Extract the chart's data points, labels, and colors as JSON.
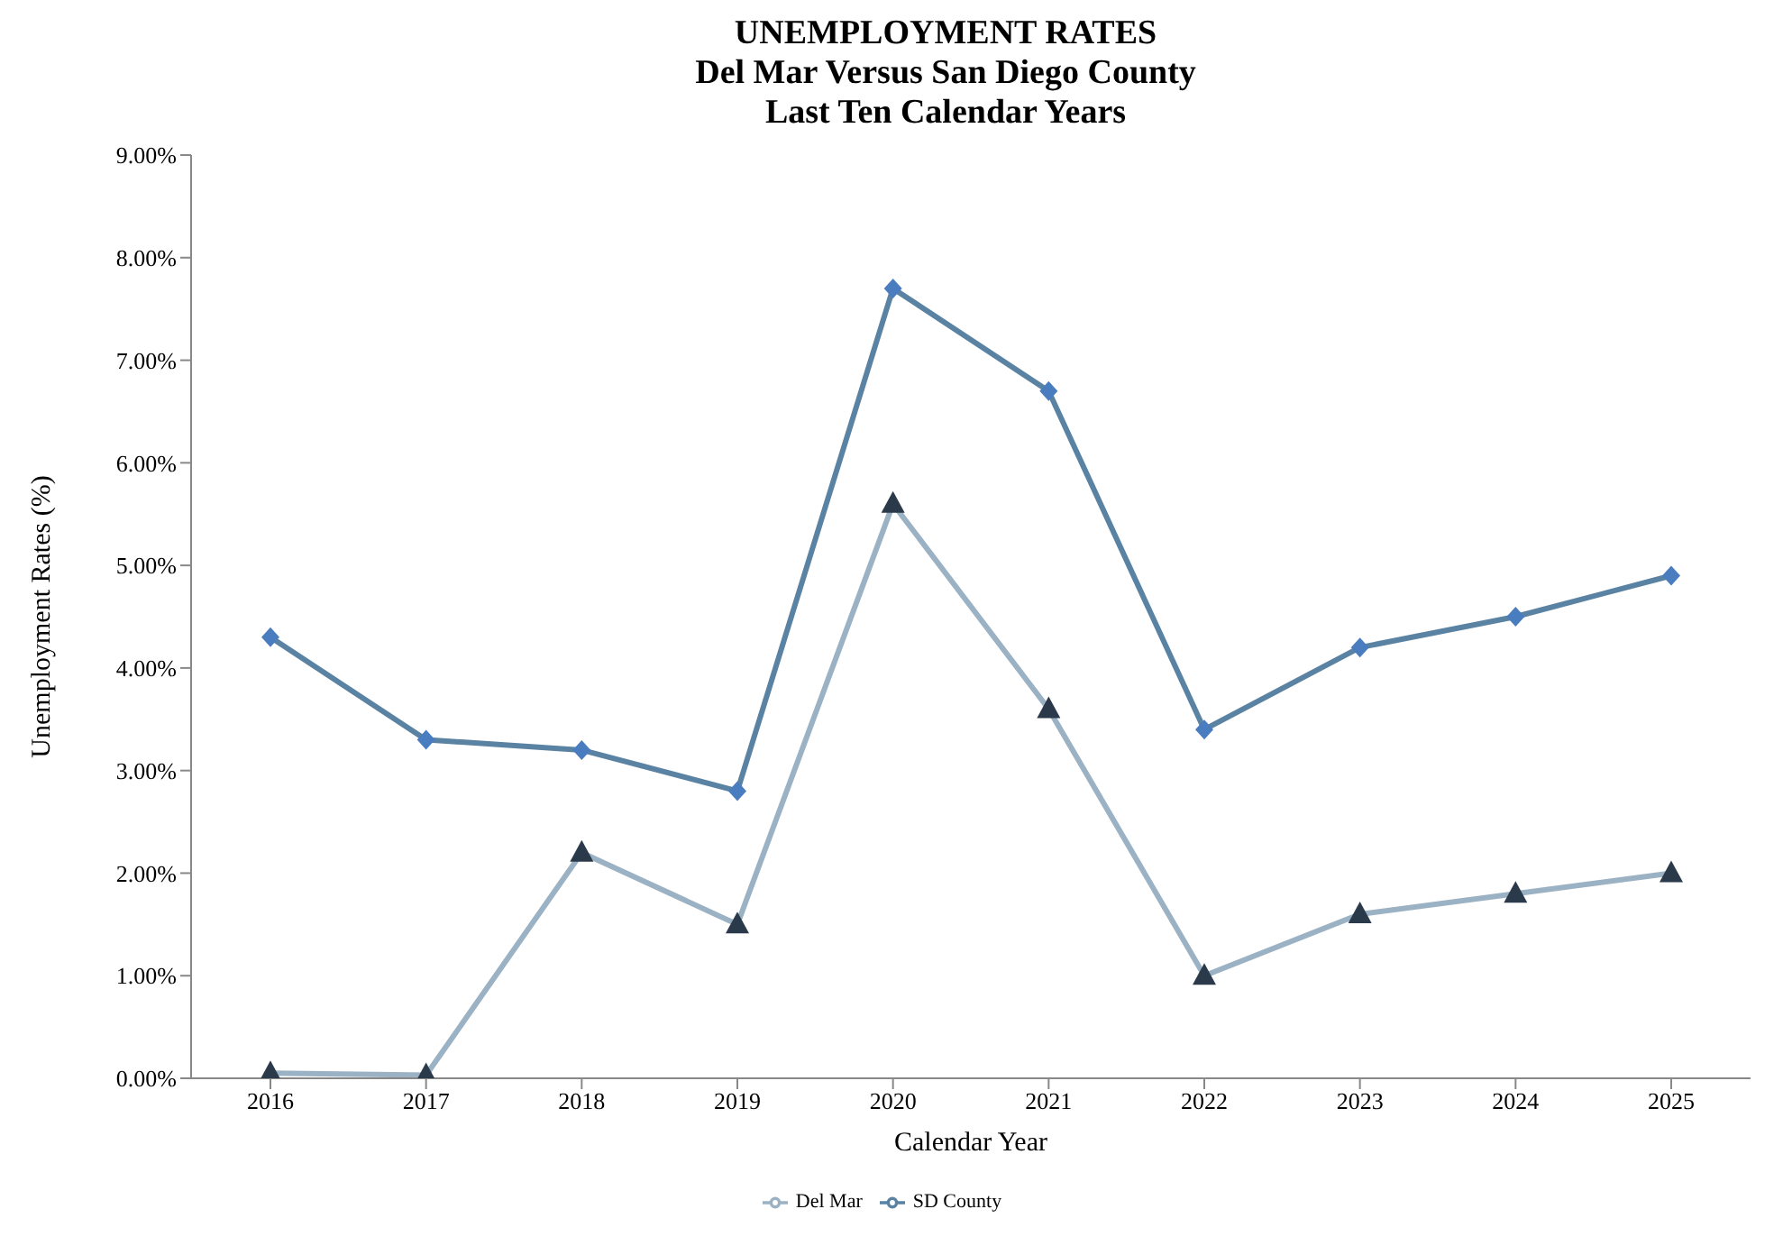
{
  "chart_data": {
    "type": "line",
    "title": "UNEMPLOYMENT RATES\nDel Mar Versus San Diego County\nLast Ten Calendar Years",
    "xlabel": "Calendar Year",
    "ylabel": "Unemployment Rates (%)",
    "categories": [
      "2016",
      "2017",
      "2018",
      "2019",
      "2020",
      "2021",
      "2022",
      "2023",
      "2024",
      "2025"
    ],
    "series": [
      {
        "name": "Del Mar",
        "color": "#9bb1c4",
        "marker": "triangle",
        "values": [
          0.05,
          0.03,
          2.2,
          1.5,
          5.6,
          3.6,
          1.0,
          1.6,
          1.8,
          2.0
        ]
      },
      {
        "name": "SD County",
        "color": "#5a82a3",
        "marker": "diamond",
        "values": [
          4.3,
          3.3,
          3.2,
          2.8,
          7.7,
          6.7,
          3.4,
          4.2,
          4.5,
          4.9
        ]
      }
    ],
    "ylim": [
      0,
      9
    ],
    "yticks": [
      {
        "value": 0,
        "label": "0.00%"
      },
      {
        "value": 1,
        "label": "1.00%"
      },
      {
        "value": 2,
        "label": "2.00%"
      },
      {
        "value": 3,
        "label": "3.00%"
      },
      {
        "value": 4,
        "label": "4.00%"
      },
      {
        "value": 5,
        "label": "5.00%"
      },
      {
        "value": 6,
        "label": "6.00%"
      },
      {
        "value": 7,
        "label": "7.00%"
      },
      {
        "value": 8,
        "label": "8.00%"
      },
      {
        "value": 9,
        "label": "9.00%"
      }
    ],
    "grid": false,
    "legend": "bottom"
  }
}
